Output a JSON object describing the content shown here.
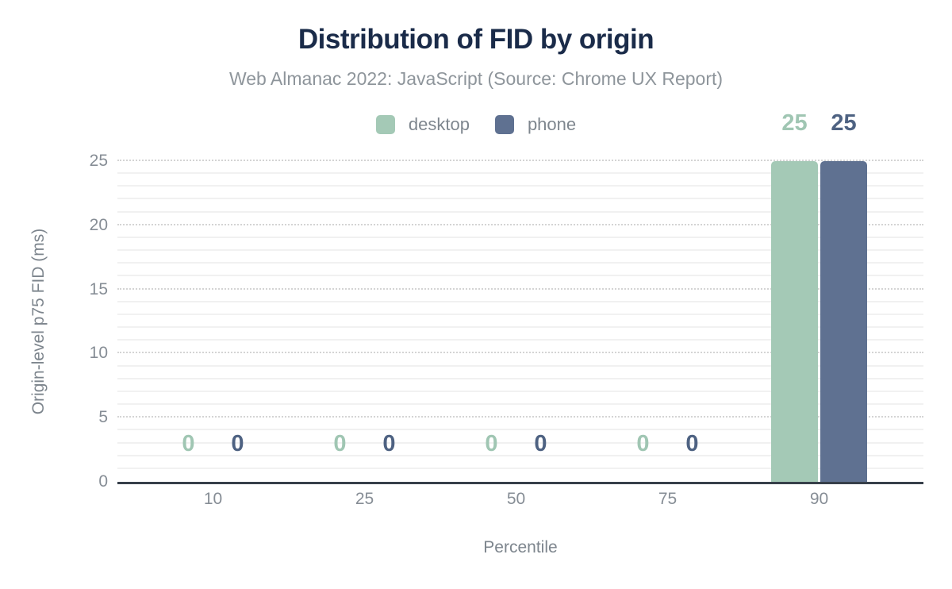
{
  "title": "Distribution of FID by origin",
  "subtitle": "Web Almanac 2022: JavaScript (Source: Chrome UX Report)",
  "legend": {
    "position": "top-center",
    "items": [
      {
        "label": "desktop",
        "color": "#a4c9b6"
      },
      {
        "label": "phone",
        "color": "#5f7191"
      }
    ]
  },
  "chart_data": {
    "type": "bar",
    "title": "Distribution of FID by origin",
    "subtitle": "Web Almanac 2022: JavaScript (Source: Chrome UX Report)",
    "xlabel": "Percentile",
    "ylabel": "Origin-level p75 FID (ms)",
    "categories": [
      "10",
      "25",
      "50",
      "75",
      "90"
    ],
    "series": [
      {
        "name": "desktop",
        "color": "#a4c9b6",
        "label_color": "#a0c6b3",
        "values": [
          0,
          0,
          0,
          0,
          25
        ]
      },
      {
        "name": "phone",
        "color": "#5f7191",
        "label_color": "#4e6282",
        "values": [
          0,
          0,
          0,
          0,
          25
        ]
      }
    ],
    "ylim": [
      0,
      25
    ],
    "yticks": [
      0,
      5,
      10,
      15,
      20,
      25
    ],
    "minor_grid_step": 1,
    "major_grid_step": 5,
    "grid": "horizontal",
    "legend_position": "top-center",
    "data_labels": true
  },
  "colors": {
    "background": "#ffffff",
    "title": "#1a2b49",
    "subtitle": "#8e959b",
    "axis_text": "#868d95",
    "baseline": "#37404a",
    "minor_grid": "#f1f1f1",
    "major_grid": "#d4d4d4"
  }
}
